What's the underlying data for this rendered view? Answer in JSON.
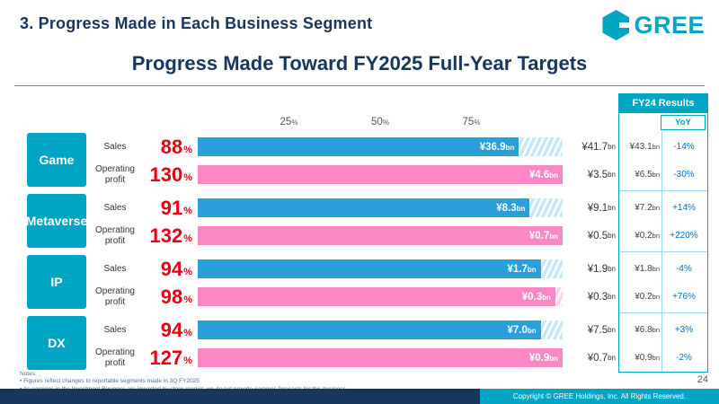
{
  "colors": {
    "brand_cyan": "#00a5c3",
    "navy": "#17365d",
    "percent_red": "#e60012",
    "sales_bar_blue": "#2b9fd9",
    "profit_bar_pink": "#fb87c4",
    "yoy_blue": "#0070c0"
  },
  "header": {
    "section_title": "3. Progress Made in Each Business Segment",
    "logo_text": "GREE",
    "slide_title": "Progress Made Toward FY2025 Full-Year Targets"
  },
  "axis": {
    "unit": "%",
    "ticks": [
      {
        "label": "25",
        "value": 25
      },
      {
        "label": "50",
        "value": 50
      },
      {
        "label": "75",
        "value": 75
      }
    ]
  },
  "fy24_panel": {
    "title": "FY24 Results",
    "yoy_label": "YoY"
  },
  "chart_data": {
    "type": "bar",
    "title": "Progress Made Toward FY2025 Full-Year Targets",
    "x_axis": {
      "unit": "%",
      "range": [
        0,
        100
      ],
      "ticks": [
        25,
        50,
        75
      ]
    },
    "legend": "solid bar = progress to date, hatched = remaining to full-year target, bars capped at 100%",
    "segments": [
      {
        "name": "Game",
        "rows": [
          {
            "metric": "Sales",
            "progress_pct": 88,
            "value": "¥36.9bn",
            "target": "¥41.7bn",
            "fy24": "¥43.1bn",
            "yoy": "-14%"
          },
          {
            "metric": "Operating profit",
            "progress_pct": 130,
            "value": "¥4.6bn",
            "target": "¥3.5bn",
            "fy24": "¥6.5bn",
            "yoy": "-30%"
          }
        ]
      },
      {
        "name": "Metaverse",
        "rows": [
          {
            "metric": "Sales",
            "progress_pct": 91,
            "value": "¥8.3bn",
            "target": "¥9.1bn",
            "fy24": "¥7.2bn",
            "yoy": "+14%"
          },
          {
            "metric": "Operating profit",
            "progress_pct": 132,
            "value": "¥0.7bn",
            "target": "¥0.5bn",
            "fy24": "¥0.2bn",
            "yoy": "+220%"
          }
        ]
      },
      {
        "name": "IP",
        "rows": [
          {
            "metric": "Sales",
            "progress_pct": 94,
            "value": "¥1.7bn",
            "target": "¥1.9bn",
            "fy24": "¥1.8bn",
            "yoy": "-4%"
          },
          {
            "metric": "Operating profit",
            "progress_pct": 98,
            "value": "¥0.3bn",
            "target": "¥0.3bn",
            "fy24": "¥0.2bn",
            "yoy": "+76%"
          }
        ]
      },
      {
        "name": "DX",
        "rows": [
          {
            "metric": "Sales",
            "progress_pct": 94,
            "value": "¥7.0bn",
            "target": "¥7.5bn",
            "fy24": "¥6.8bn",
            "yoy": "+3%"
          },
          {
            "metric": "Operating profit",
            "progress_pct": 127,
            "value": "¥0.9bn",
            "target": "¥0.7bn",
            "fy24": "¥0.9bn",
            "yoy": "-2%"
          }
        ]
      }
    ]
  },
  "notes": {
    "label": "Notes:",
    "items": [
      "• Figures reflect changes to reportable segments made in 3Q FY2025",
      "• As earnings in the Investment Business are impacted by stock market, we do not provide earnings forecasts for this business."
    ]
  },
  "page_number": "24",
  "footer": {
    "copyright": "Copyright © GREE Holdings, Inc. All Rights Reserved."
  }
}
